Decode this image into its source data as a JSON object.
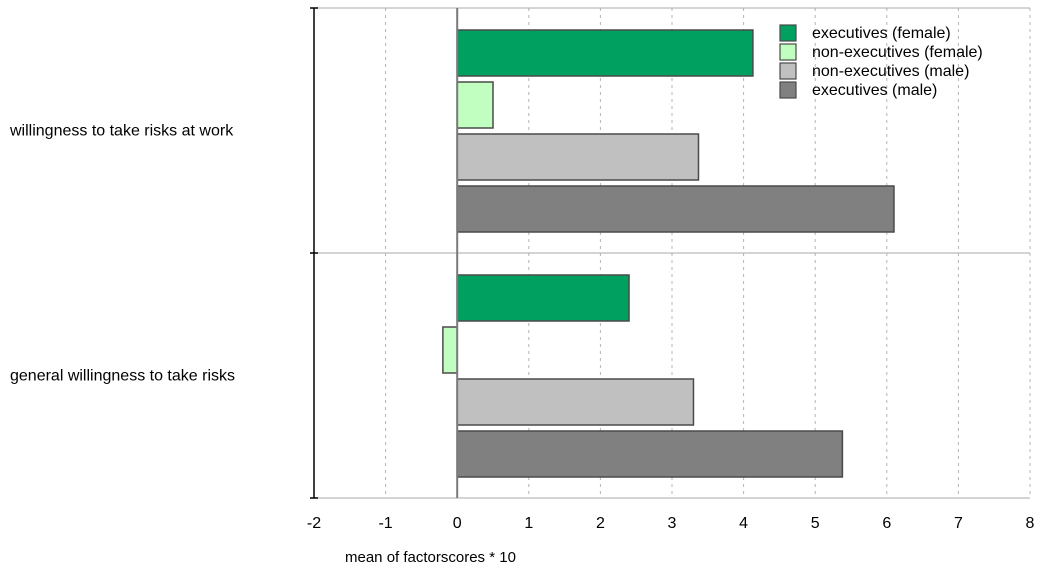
{
  "chart_data": {
    "type": "bar",
    "orientation": "horizontal",
    "title": "",
    "xlabel": "mean of factorscores * 10",
    "ylabel": "",
    "xlim": [
      -2,
      8
    ],
    "xticks": [
      "-2",
      "-1",
      "0",
      "1",
      "2",
      "3",
      "4",
      "5",
      "6",
      "7",
      "8"
    ],
    "grid": "vertical dashed",
    "legend_position": "top-right",
    "categories": [
      "willingness to take risks at work",
      "general willingness to take risks"
    ],
    "series": [
      {
        "name": "executives (female)",
        "color": "#00a060",
        "values": [
          4.13,
          2.4
        ]
      },
      {
        "name": "non-executives (female)",
        "color": "#c0ffc0",
        "values": [
          0.5,
          -0.2
        ]
      },
      {
        "name": "non-executives (male)",
        "color": "#c0c0c0",
        "values": [
          3.37,
          3.3
        ]
      },
      {
        "name": "executives (male)",
        "color": "#808080",
        "values": [
          6.1,
          5.38
        ]
      }
    ]
  }
}
